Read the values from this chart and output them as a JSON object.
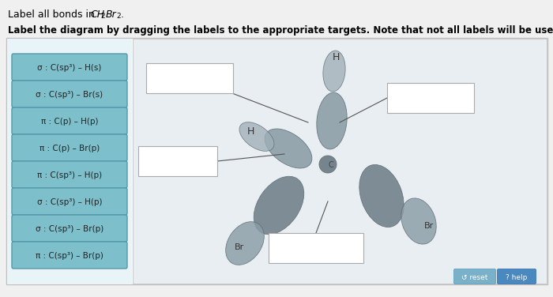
{
  "labels_left": [
    "σ : C(sp³) – H(s)",
    "σ : C(sp³) – Br(s)",
    "π : C(p) – H(p)",
    "π : C(p) – Br(p)",
    "π : C(sp³) – H(p)",
    "σ : C(sp³) – H(p)",
    "σ : C(sp³) – Br(p)",
    "π : C(sp³) – Br(p)"
  ],
  "btn_color": "#7dc0cc",
  "btn_edge": "#5599aa",
  "btn_text": "#222222",
  "bg_page": "#f0f0f0",
  "bg_panel": "#ffffff",
  "bg_diagram": "#e8eef2",
  "figsize": [
    7.0,
    3.76
  ],
  "dpi": 100,
  "title1_prefix": "Label all bonds in ",
  "title1_mol": "CH",
  "title1_sub2a": "2",
  "title1_mid": "Br",
  "title1_sub2b": "2",
  "title1_dot": ".",
  "title2": "Label the diagram by dragging the labels to the appropriate targets. Note that not all labels will be used.",
  "lobe_color_light": "#a0afb8",
  "lobe_color_mid": "#8a9ca6",
  "lobe_color_dark": "#707f88",
  "lobe_edge": "#606e76",
  "reset_color": "#7ab0c8",
  "help_color": "#4a88c0"
}
